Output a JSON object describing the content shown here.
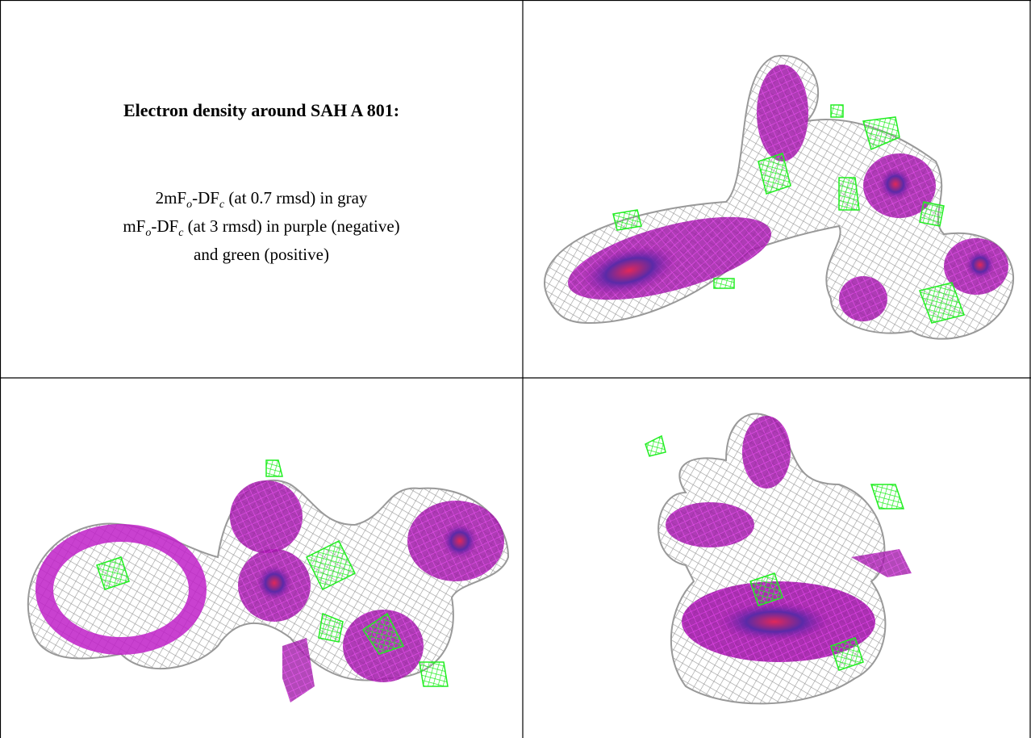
{
  "panel": {
    "title": "Electron density around SAH A 801:",
    "lines": [
      [
        "2mF",
        "o",
        "-DF",
        "c",
        " (at 0.7 rmsd) in gray"
      ],
      [
        "mF",
        "o",
        "-DF",
        "c",
        " (at 3 rmsd) in purple (negative)"
      ],
      [
        "and green (positive)"
      ]
    ]
  }
}
